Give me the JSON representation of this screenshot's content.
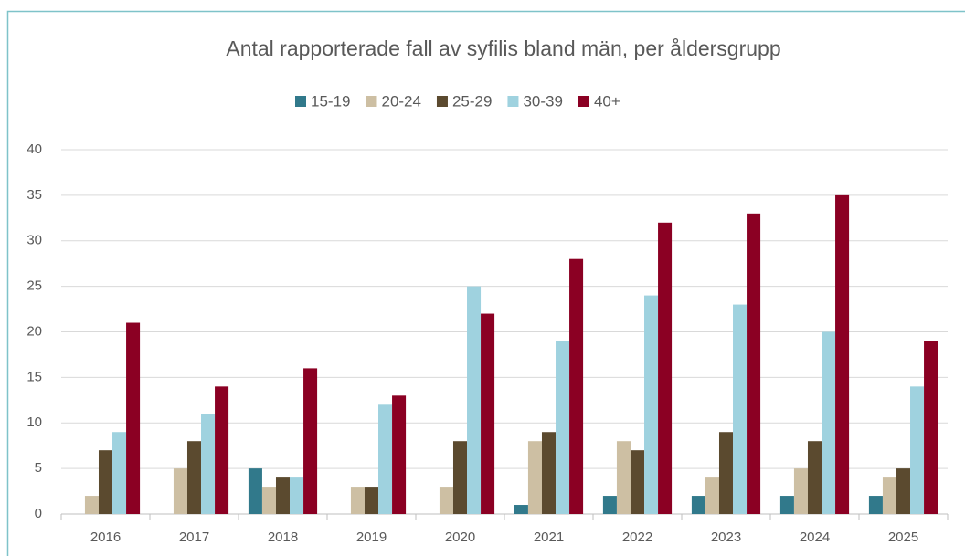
{
  "chart_data": {
    "type": "bar",
    "title": "Antal rapporterade fall av syfilis bland män, per åldersgrupp",
    "categories": [
      "2016",
      "2017",
      "2018",
      "2019",
      "2020",
      "2021",
      "2022",
      "2023",
      "2024",
      "2025"
    ],
    "series": [
      {
        "name": "15-19",
        "color": "#31798b",
        "values": [
          0,
          0,
          5,
          0,
          0,
          1,
          2,
          2,
          2,
          2
        ]
      },
      {
        "name": "20-24",
        "color": "#cdbfa3",
        "values": [
          2,
          5,
          3,
          3,
          3,
          8,
          8,
          4,
          5,
          4
        ]
      },
      {
        "name": "25-29",
        "color": "#5b4a2f",
        "values": [
          7,
          8,
          4,
          3,
          8,
          9,
          7,
          9,
          8,
          5
        ]
      },
      {
        "name": "30-39",
        "color": "#9fd2df",
        "values": [
          9,
          11,
          4,
          12,
          25,
          19,
          24,
          23,
          20,
          14
        ]
      },
      {
        "name": "40+",
        "color": "#8b0023",
        "values": [
          21,
          14,
          16,
          13,
          22,
          28,
          32,
          33,
          35,
          19
        ]
      }
    ],
    "ylim": [
      0,
      40
    ],
    "yticks": [
      0,
      5,
      10,
      15,
      20,
      25,
      30,
      35,
      40
    ],
    "grid": true,
    "legend": "top"
  }
}
